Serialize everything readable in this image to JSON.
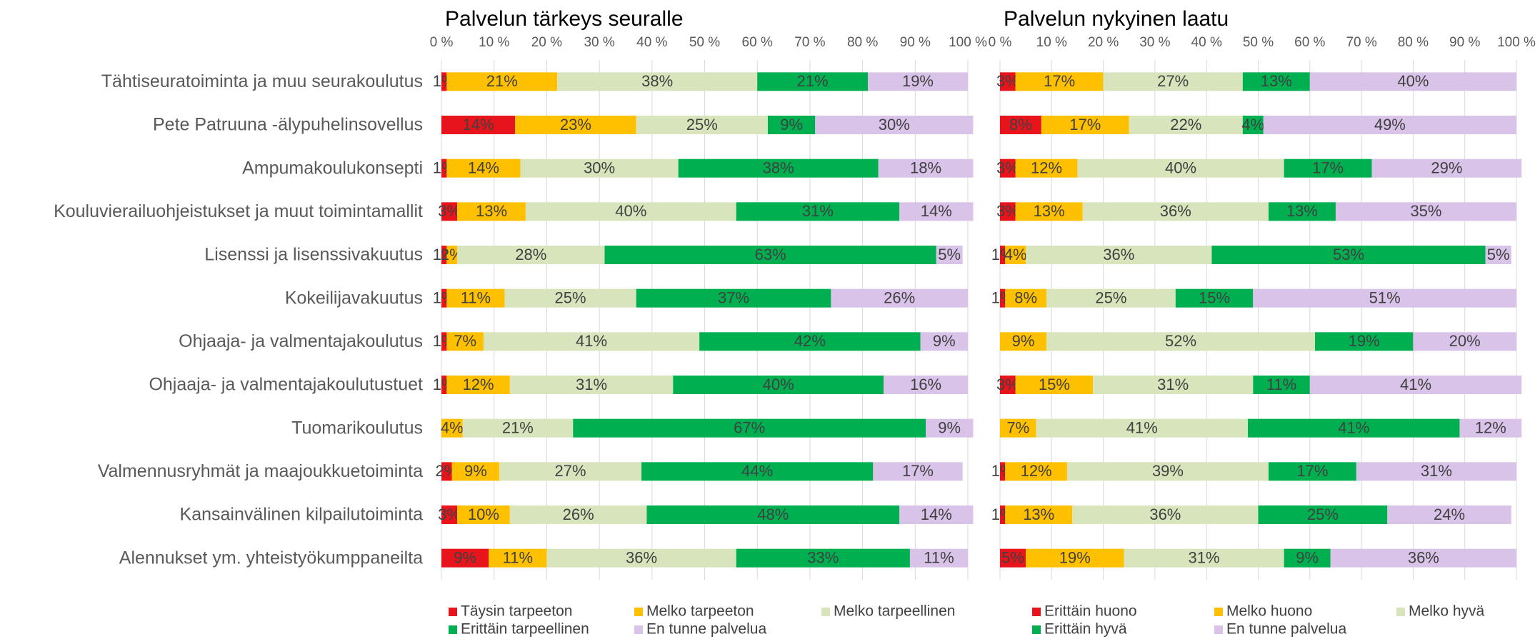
{
  "chart_data": [
    {
      "type": "stacked-barh",
      "title": "Palvelun tärkeys seuralle",
      "categories": [
        "Tähtiseuratoiminta ja muu seurakoulutus",
        "Pete Patruuna -älypuhelinsovellus",
        "Ampumakoulukonsepti",
        "Kouluvierailuohjeistukset ja muut toimintamallit",
        "Lisenssi ja lisenssivakuutus",
        "Kokeilijavakuutus",
        "Ohjaaja- ja valmentajakoulutus",
        "Ohjaaja- ja valmentajakoulutustuet",
        "Tuomarikoulutus",
        "Valmennusryhmät ja maajoukkuetoiminta",
        "Kansainvälinen kilpailutoiminta",
        "Alennukset ym. yhteistyökumppaneilta"
      ],
      "xlim": [
        0,
        100
      ],
      "xticks": [
        {
          "value": 0,
          "label": "0 %"
        },
        {
          "value": 10,
          "label": "10 %"
        },
        {
          "value": 20,
          "label": "20 %"
        },
        {
          "value": 30,
          "label": "30 %"
        },
        {
          "value": 40,
          "label": "40 %"
        },
        {
          "value": 50,
          "label": "50 %"
        },
        {
          "value": 60,
          "label": "60 %"
        },
        {
          "value": 70,
          "label": "70 %"
        },
        {
          "value": 80,
          "label": "80 %"
        },
        {
          "value": 90,
          "label": "90 %"
        },
        {
          "value": 100,
          "label": "100 %"
        }
      ],
      "grid": true,
      "series": [
        {
          "name": "Täysin tarpeeton",
          "color": "#e8141c",
          "values": [
            1,
            14,
            1,
            3,
            1,
            1,
            1,
            1,
            null,
            2,
            3,
            9
          ],
          "value_labels": [
            "1%",
            "14%",
            "1%",
            "3%",
            "1%",
            "1%",
            "1%",
            "1%",
            null,
            "2%",
            "3%",
            "9%"
          ]
        },
        {
          "name": "Melko tarpeeton",
          "color": "#ffc000",
          "values": [
            21,
            23,
            14,
            13,
            2,
            11,
            7,
            12,
            4,
            9,
            10,
            11
          ],
          "value_labels": [
            "21%",
            "23%",
            "14%",
            "13%",
            "2%",
            "11%",
            "7%",
            "12%",
            "4%",
            "9%",
            "10%",
            "11%"
          ]
        },
        {
          "name": "Melko tarpeellinen",
          "color": "#d8e4bc",
          "values": [
            38,
            25,
            30,
            40,
            28,
            25,
            41,
            31,
            21,
            27,
            26,
            36
          ],
          "value_labels": [
            "38%",
            "25%",
            "30%",
            "40%",
            "28%",
            "25%",
            "41%",
            "31%",
            "21%",
            "27%",
            "26%",
            "36%"
          ]
        },
        {
          "name": "Erittäin tarpeellinen",
          "color": "#00b050",
          "values": [
            21,
            9,
            38,
            31,
            63,
            37,
            42,
            40,
            67,
            44,
            48,
            33
          ],
          "value_labels": [
            "21%",
            "9%",
            "38%",
            "31%",
            "63%",
            "37%",
            "42%",
            "40%",
            "67%",
            "44%",
            "48%",
            "33%"
          ]
        },
        {
          "name": "En tunne palvelua",
          "color": "#d9c3e9",
          "values": [
            19,
            30,
            18,
            14,
            5,
            26,
            9,
            16,
            9,
            17,
            14,
            11
          ],
          "value_labels": [
            "19%",
            "30%",
            "18%",
            "14%",
            "5%",
            "26%",
            "9%",
            "16%",
            "9%",
            "17%",
            "14%",
            "11%"
          ]
        }
      ]
    },
    {
      "type": "stacked-barh",
      "title": "Palvelun nykyinen laatu",
      "xlim": [
        0,
        100
      ],
      "xticks": [
        {
          "value": 0,
          "label": "0 %"
        },
        {
          "value": 10,
          "label": "10 %"
        },
        {
          "value": 20,
          "label": "20 %"
        },
        {
          "value": 30,
          "label": "30 %"
        },
        {
          "value": 40,
          "label": "40 %"
        },
        {
          "value": 50,
          "label": "50 %"
        },
        {
          "value": 60,
          "label": "60 %"
        },
        {
          "value": 70,
          "label": "70 %"
        },
        {
          "value": 80,
          "label": "80 %"
        },
        {
          "value": 90,
          "label": "90 %"
        },
        {
          "value": 100,
          "label": "100 %"
        }
      ],
      "grid": true,
      "series": [
        {
          "name": "Erittäin huono",
          "color": "#e8141c",
          "values": [
            3,
            8,
            3,
            3,
            1,
            1,
            null,
            3,
            null,
            1,
            1,
            5
          ],
          "value_labels": [
            "3%",
            "8%",
            "3%",
            "3%",
            "1%",
            "1%",
            null,
            "3%",
            null,
            "1%",
            "1%",
            "5%"
          ]
        },
        {
          "name": "Melko huono",
          "color": "#ffc000",
          "values": [
            17,
            17,
            12,
            13,
            4,
            8,
            9,
            15,
            7,
            12,
            13,
            19
          ],
          "value_labels": [
            "17%",
            "17%",
            "12%",
            "13%",
            "4%",
            "8%",
            "9%",
            "15%",
            "7%",
            "12%",
            "13%",
            "19%"
          ]
        },
        {
          "name": "Melko hyvä",
          "color": "#d8e4bc",
          "values": [
            27,
            22,
            40,
            36,
            36,
            25,
            52,
            31,
            41,
            39,
            36,
            31
          ],
          "value_labels": [
            "27%",
            "22%",
            "40%",
            "36%",
            "36%",
            "25%",
            "52%",
            "31%",
            "41%",
            "39%",
            "36%",
            "31%"
          ]
        },
        {
          "name": "Erittäin hyvä",
          "color": "#00b050",
          "values": [
            13,
            4,
            17,
            13,
            53,
            15,
            19,
            11,
            41,
            17,
            25,
            9
          ],
          "value_labels": [
            "13%",
            "4%",
            "17%",
            "13%",
            "53%",
            "15%",
            "19%",
            "11%",
            "41%",
            "17%",
            "25%",
            "9%"
          ]
        },
        {
          "name": "En tunne palvelua",
          "color": "#d9c3e9",
          "values": [
            40,
            49,
            29,
            35,
            5,
            51,
            20,
            41,
            12,
            31,
            24,
            36
          ],
          "value_labels": [
            "40%",
            "49%",
            "29%",
            "35%",
            "5%",
            "51%",
            "20%",
            "41%",
            "12%",
            "31%",
            "24%",
            "36%"
          ]
        }
      ]
    }
  ]
}
